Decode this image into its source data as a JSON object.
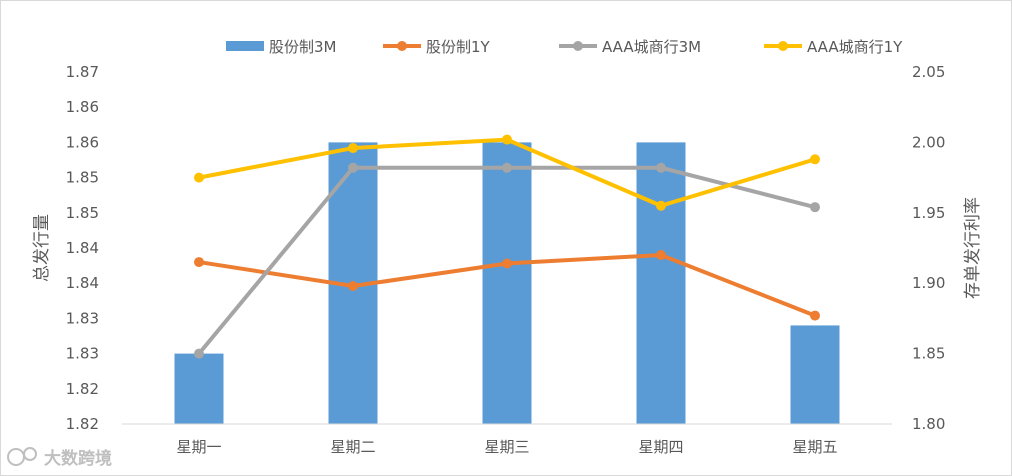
{
  "chart_data": {
    "type": "bar",
    "categories": [
      "星期一",
      "星期二",
      "星期三",
      "星期四",
      "星期五"
    ],
    "series": [
      {
        "name": "股份制3M",
        "type": "bar",
        "axis": "left",
        "color": "#5b9bd5",
        "values": [
          1.83,
          1.86,
          1.86,
          1.86,
          1.834
        ]
      },
      {
        "name": "股份制1Y",
        "type": "line",
        "axis": "right",
        "color": "#ed7d31",
        "values": [
          1.915,
          1.898,
          1.914,
          1.92,
          1.877
        ]
      },
      {
        "name": "AAA城商行3M",
        "type": "line",
        "axis": "right",
        "color": "#a5a5a5",
        "values": [
          1.85,
          1.982,
          1.982,
          1.982,
          1.954
        ]
      },
      {
        "name": "AAA城商行1Y",
        "type": "line",
        "axis": "right",
        "color": "#ffc000",
        "values": [
          1.975,
          1.996,
          2.002,
          1.955,
          1.988
        ]
      }
    ],
    "ylabel": "总发行量",
    "y2label": "存单发行利率",
    "ylim": [
      1.82,
      1.87
    ],
    "y2lim": [
      1.8,
      2.05
    ],
    "yticks": [
      "1.87",
      "1.86",
      "1.86",
      "1.85",
      "1.85",
      "1.84",
      "1.84",
      "1.83",
      "1.83",
      "1.82",
      "1.82"
    ],
    "y2ticks": [
      "2.05",
      "2.00",
      "1.95",
      "1.90",
      "1.85",
      "1.80"
    ],
    "grid": false,
    "legend_position": "top"
  },
  "watermark": {
    "text": "大数跨境"
  }
}
